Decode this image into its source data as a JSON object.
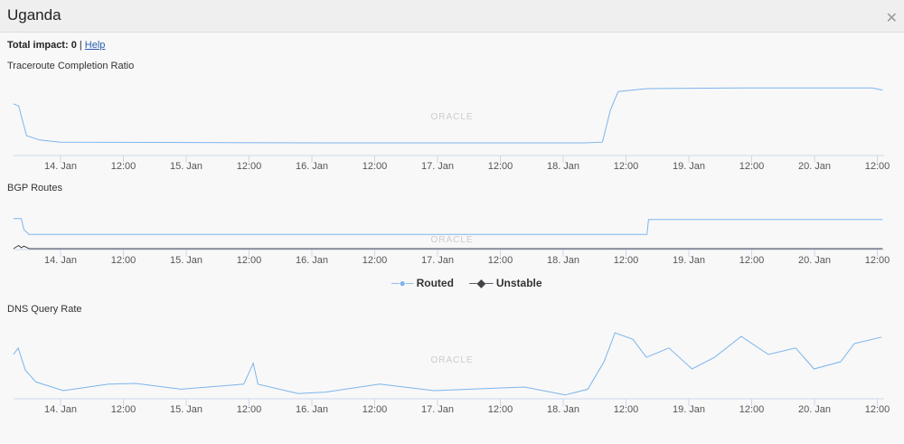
{
  "header": {
    "title": "Uganda",
    "close_icon": "close-icon"
  },
  "impact": {
    "label": "Total impact: 0",
    "separator": "|",
    "help": "Help"
  },
  "watermark": "ORACLE",
  "x_ticks": [
    {
      "h": 0,
      "label": "14. Jan"
    },
    {
      "h": 12,
      "label": "12:00"
    },
    {
      "h": 24,
      "label": "15. Jan"
    },
    {
      "h": 36,
      "label": "12:00"
    },
    {
      "h": 48,
      "label": "16. Jan"
    },
    {
      "h": 60,
      "label": "12:00"
    },
    {
      "h": 72,
      "label": "17. Jan"
    },
    {
      "h": 84,
      "label": "12:00"
    },
    {
      "h": 96,
      "label": "18. Jan"
    },
    {
      "h": 108,
      "label": "12:00"
    },
    {
      "h": 120,
      "label": "19. Jan"
    },
    {
      "h": 132,
      "label": "12:00"
    },
    {
      "h": 144,
      "label": "20. Jan"
    },
    {
      "h": 156,
      "label": "12:00"
    }
  ],
  "chart_data": [
    {
      "type": "line",
      "title": "Traceroute Completion Ratio",
      "x_unit": "hours since 14. Jan 00:00",
      "series": [
        {
          "color": "#7cb5ec",
          "points": [
            [
              -9,
              69
            ],
            [
              -8,
              66
            ],
            [
              -6.5,
              25
            ],
            [
              -4,
              19
            ],
            [
              0,
              16
            ],
            [
              50,
              15
            ],
            [
              100,
              15
            ],
            [
              103.5,
              16
            ],
            [
              105,
              60
            ],
            [
              106.5,
              86
            ],
            [
              112,
              90
            ],
            [
              130,
              91
            ],
            [
              155,
              91
            ],
            [
              157,
              88
            ]
          ]
        }
      ]
    },
    {
      "type": "line",
      "title": "BGP Routes",
      "series": [
        {
          "name": "Routed",
          "color": "#7cb5ec",
          "points": [
            [
              -9,
              95
            ],
            [
              -7.5,
              95
            ],
            [
              -7,
              60
            ],
            [
              -6,
              45
            ],
            [
              112,
              45
            ],
            [
              112.3,
              92
            ],
            [
              157,
              92
            ]
          ]
        },
        {
          "name": "Unstable",
          "color": "#434348",
          "points": [
            [
              -9,
              0
            ],
            [
              -8,
              10
            ],
            [
              -7.5,
              3
            ],
            [
              -7,
              8
            ],
            [
              -6,
              0
            ],
            [
              157,
              0
            ]
          ]
        }
      ]
    },
    {
      "type": "line",
      "title": "DNS Query Rate",
      "series": [
        {
          "color": "#7cb5ec",
          "points": [
            [
              -9,
              60
            ],
            [
              -8.1,
              69
            ],
            [
              -6.7,
              38
            ],
            [
              -4.7,
              22
            ],
            [
              0.5,
              10
            ],
            [
              9.2,
              19
            ],
            [
              14.3,
              20
            ],
            [
              23,
              12
            ],
            [
              35,
              19
            ],
            [
              36.8,
              48
            ],
            [
              37.7,
              19
            ],
            [
              45.4,
              6
            ],
            [
              50.6,
              8
            ],
            [
              61,
              19
            ],
            [
              71.3,
              10
            ],
            [
              78.2,
              12
            ],
            [
              88.6,
              15
            ],
            [
              96.4,
              4
            ],
            [
              100.7,
              12
            ],
            [
              103.8,
              50
            ],
            [
              105.9,
              90
            ],
            [
              109.3,
              81
            ],
            [
              111.9,
              56
            ],
            [
              116.2,
              69
            ],
            [
              120.6,
              40
            ],
            [
              124.9,
              56
            ],
            [
              130,
              85
            ],
            [
              135.2,
              60
            ],
            [
              140.4,
              69
            ],
            [
              143.9,
              40
            ],
            [
              149,
              50
            ],
            [
              151.6,
              75
            ],
            [
              156.8,
              84
            ]
          ]
        }
      ]
    }
  ],
  "legend": {
    "routed": "Routed",
    "unstable": "Unstable"
  }
}
